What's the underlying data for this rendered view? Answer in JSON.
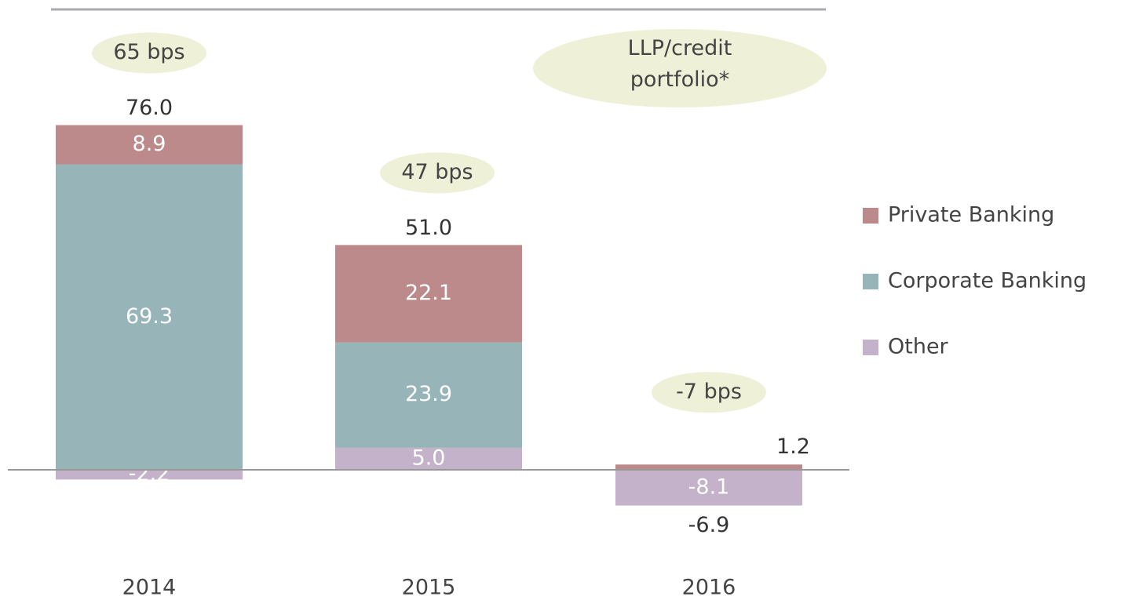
{
  "chart_data": {
    "type": "stacked_bar",
    "categories": [
      "2014",
      "2015",
      "2016"
    ],
    "series": [
      {
        "name": "Private Banking",
        "color": "#bc8a8a",
        "values": [
          8.9,
          22.1,
          1.2
        ],
        "value_labels": [
          "8.9",
          "22.1",
          "1.2"
        ]
      },
      {
        "name": "Corporate Banking",
        "color": "#97b5b8",
        "values": [
          69.3,
          23.9,
          null
        ],
        "value_labels": [
          "69.3",
          "23.9",
          null
        ]
      },
      {
        "name": "Other",
        "color": "#c4b2ca",
        "values": [
          -2.2,
          5,
          -8.1
        ],
        "value_labels": [
          "-2.2",
          "5.0",
          "-8.1"
        ]
      }
    ],
    "totals": {
      "values": [
        76,
        51,
        -6.9
      ],
      "value_labels": [
        "76.0",
        "51.0",
        "-6.9"
      ]
    },
    "annotations": [
      "65 bps",
      "47 bps",
      "-7 bps"
    ],
    "annotation_title": "LLP/credit portfolio*",
    "legend": "right"
  }
}
